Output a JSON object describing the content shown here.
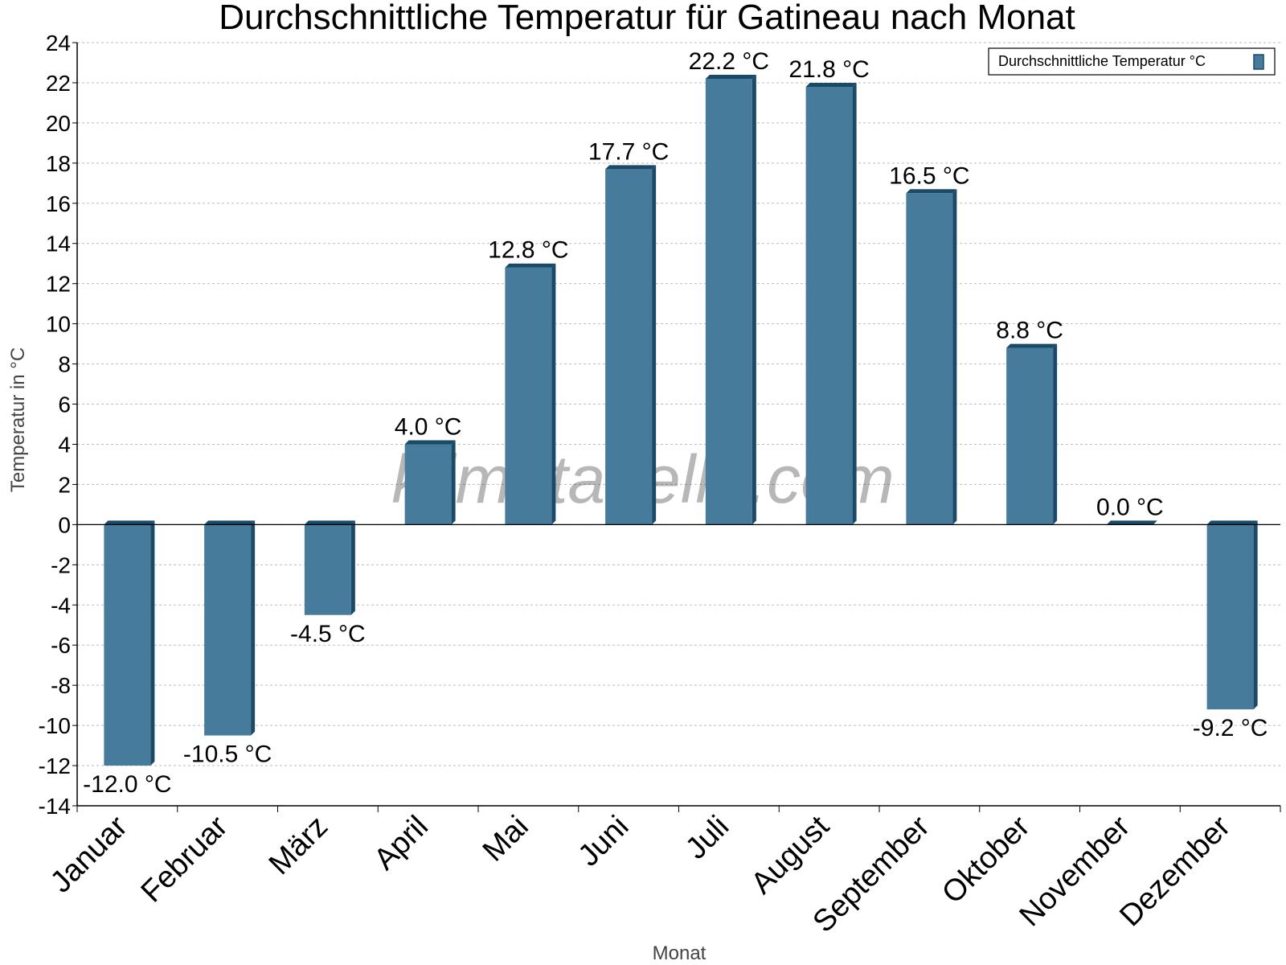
{
  "chart_data": {
    "type": "bar",
    "title": "Durchschnittliche Temperatur für Gatineau nach Monat",
    "xlabel": "Monat",
    "ylabel": "Temperatur in °C",
    "categories": [
      "Januar",
      "Februar",
      "März",
      "April",
      "Mai",
      "Juni",
      "Juli",
      "August",
      "September",
      "Oktober",
      "November",
      "Dezember"
    ],
    "series": [
      {
        "name": "Durchschnittliche Temperatur °C",
        "values": [
          -12.0,
          -10.5,
          -4.5,
          4.0,
          12.8,
          17.7,
          22.2,
          21.8,
          16.5,
          8.8,
          0.0,
          -9.2
        ],
        "labels": [
          "-12.0 °C",
          "-10.5 °C",
          "-4.5 °C",
          "4.0 °C",
          "12.8 °C",
          "17.7 °C",
          "22.2 °C",
          "21.8 °C",
          "16.5 °C",
          "8.8 °C",
          "0.0 °C",
          "-9.2 °C"
        ]
      }
    ],
    "ylim": [
      -14,
      24
    ],
    "yticks": [
      "24",
      "22",
      "20",
      "18",
      "16",
      "14",
      "12",
      "10",
      "8",
      "6",
      "4",
      "2",
      "0",
      "-2",
      "-4",
      "-6",
      "-8",
      "-10",
      "-12",
      "-14"
    ],
    "grid": true,
    "legend_position": "top-right",
    "colors": {
      "bar": "#467b9c",
      "bar_side": "#1b4a68",
      "bar_top": "#1b4a68",
      "grid": "#bbbbbb"
    },
    "watermark": "klimatabelle.com"
  }
}
